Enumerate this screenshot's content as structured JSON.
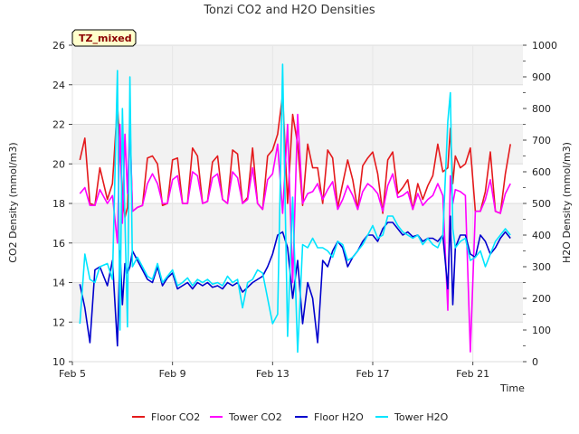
{
  "chart_data": {
    "type": "line",
    "title": "Tonzi CO2 and H2O Densities",
    "tag": "TZ_mixed",
    "xlabel": "Time",
    "ylabel_left": "CO2 Density (mmol/m3)",
    "ylabel_right": "H2O Density (mmol/m3)",
    "xlim": [
      5,
      23
    ],
    "ylim_left": [
      10,
      26
    ],
    "ylim_right": [
      0,
      1000
    ],
    "x_ticks": [
      5,
      9,
      13,
      17,
      21
    ],
    "x_tick_labels": [
      "Feb 5",
      "Feb 9",
      "Feb 13",
      "Feb 17",
      "Feb 21"
    ],
    "y_ticks_left": [
      10,
      12,
      14,
      16,
      18,
      20,
      22,
      24,
      26
    ],
    "y_tick_labels_left": [
      "10",
      "12",
      "14",
      "16",
      "18",
      "20",
      "22",
      "24",
      "26"
    ],
    "y_ticks_right": [
      0,
      100,
      200,
      300,
      400,
      500,
      600,
      700,
      800,
      900,
      1000
    ],
    "y_tick_labels_right": [
      "0",
      "100",
      "200",
      "300",
      "400",
      "500",
      "600",
      "700",
      "800",
      "900",
      "1000"
    ],
    "grid": true,
    "band_shading": true,
    "legend_position": "bottom",
    "series": [
      {
        "name": "Floor CO2",
        "color": "#e41a1c",
        "axis": "left",
        "x": [
          5.3,
          5.5,
          5.7,
          5.9,
          6.1,
          6.4,
          6.6,
          6.8,
          6.9,
          7.0,
          7.1,
          7.2,
          7.3,
          7.4,
          7.6,
          7.8,
          8.0,
          8.2,
          8.4,
          8.6,
          8.8,
          9.0,
          9.2,
          9.4,
          9.6,
          9.8,
          10.0,
          10.2,
          10.4,
          10.6,
          10.8,
          11.0,
          11.2,
          11.4,
          11.6,
          11.8,
          12.0,
          12.2,
          12.4,
          12.6,
          12.8,
          13.0,
          13.2,
          13.4,
          13.6,
          13.8,
          14.0,
          14.2,
          14.4,
          14.6,
          14.8,
          15.0,
          15.2,
          15.4,
          15.6,
          15.8,
          16.0,
          16.2,
          16.4,
          16.6,
          16.8,
          17.0,
          17.2,
          17.4,
          17.6,
          17.8,
          18.0,
          18.2,
          18.4,
          18.6,
          18.8,
          19.0,
          19.2,
          19.4,
          19.6,
          19.8,
          20.0,
          20.1,
          20.2,
          20.3,
          20.5,
          20.7,
          20.9,
          21.1,
          21.3,
          21.5,
          21.7,
          21.9,
          22.1,
          22.3,
          22.5
        ],
        "values": [
          20.2,
          21.3,
          18.0,
          17.9,
          19.8,
          18.2,
          19.0,
          23.0,
          21.0,
          18.5,
          17.3,
          17.8,
          22.0,
          17.6,
          17.8,
          17.9,
          20.3,
          20.4,
          20.0,
          17.9,
          18.0,
          20.2,
          20.3,
          18.0,
          18.0,
          20.8,
          20.4,
          18.0,
          18.1,
          20.1,
          20.4,
          18.2,
          18.0,
          20.7,
          20.5,
          18.0,
          18.3,
          20.8,
          18.0,
          17.7,
          20.4,
          20.7,
          21.5,
          23.5,
          18.0,
          22.5,
          21.0,
          17.9,
          21.0,
          19.8,
          19.8,
          18.0,
          20.7,
          20.3,
          17.8,
          19.0,
          20.2,
          19.2,
          17.7,
          19.9,
          20.3,
          20.6,
          19.5,
          17.5,
          20.2,
          20.6,
          18.5,
          18.8,
          19.2,
          17.7,
          19.0,
          18.2,
          18.9,
          19.4,
          21.0,
          19.6,
          19.8,
          21.8,
          19.0,
          20.4,
          19.8,
          20.0,
          20.8,
          17.6,
          17.6,
          18.6,
          20.6,
          17.6,
          17.5,
          19.5,
          21.0
        ]
      },
      {
        "name": "Tower CO2",
        "color": "#ff00ff",
        "axis": "left",
        "x": [
          5.3,
          5.5,
          5.7,
          5.9,
          6.1,
          6.4,
          6.6,
          6.8,
          6.9,
          7.0,
          7.1,
          7.2,
          7.3,
          7.4,
          7.6,
          7.8,
          8.0,
          8.2,
          8.4,
          8.6,
          8.8,
          9.0,
          9.2,
          9.4,
          9.6,
          9.8,
          10.0,
          10.2,
          10.4,
          10.6,
          10.8,
          11.0,
          11.2,
          11.4,
          11.6,
          11.8,
          12.0,
          12.2,
          12.4,
          12.6,
          12.8,
          13.0,
          13.2,
          13.4,
          13.6,
          13.8,
          14.0,
          14.2,
          14.4,
          14.6,
          14.8,
          15.0,
          15.2,
          15.4,
          15.6,
          15.8,
          16.0,
          16.2,
          16.4,
          16.6,
          16.8,
          17.0,
          17.2,
          17.4,
          17.6,
          17.8,
          18.0,
          18.2,
          18.4,
          18.6,
          18.8,
          19.0,
          19.2,
          19.4,
          19.6,
          19.8,
          20.0,
          20.1,
          20.2,
          20.3,
          20.5,
          20.7,
          20.9,
          21.1,
          21.3,
          21.5,
          21.7,
          21.9,
          22.1,
          22.3,
          22.5
        ],
        "values": [
          18.5,
          18.8,
          17.9,
          17.9,
          18.7,
          18.0,
          18.4,
          16.0,
          22.0,
          17.0,
          21.5,
          18.5,
          22.3,
          17.6,
          17.8,
          17.9,
          19.0,
          19.5,
          19.0,
          18.0,
          18.0,
          19.2,
          19.4,
          18.0,
          18.0,
          19.6,
          19.4,
          18.0,
          18.1,
          19.3,
          19.5,
          18.2,
          18.0,
          19.6,
          19.3,
          18.0,
          18.2,
          19.8,
          18.0,
          17.7,
          19.2,
          19.5,
          21.0,
          17.5,
          22.0,
          14.0,
          22.5,
          18.0,
          18.5,
          18.6,
          19.0,
          18.2,
          18.7,
          19.1,
          17.7,
          18.2,
          18.9,
          18.4,
          17.7,
          18.6,
          19.0,
          18.8,
          18.5,
          17.6,
          18.9,
          19.5,
          18.3,
          18.4,
          18.6,
          17.7,
          18.5,
          17.9,
          18.2,
          18.4,
          19.0,
          18.4,
          12.6,
          19.4,
          18.0,
          18.7,
          18.6,
          18.4,
          10.5,
          17.6,
          17.6,
          18.2,
          19.2,
          17.6,
          17.5,
          18.5,
          19.0
        ]
      },
      {
        "name": "Floor H2O",
        "color": "#0000cd",
        "axis": "right",
        "x": [
          5.3,
          5.5,
          5.7,
          5.9,
          6.1,
          6.4,
          6.6,
          6.8,
          6.9,
          7.0,
          7.1,
          7.2,
          7.3,
          7.4,
          7.6,
          7.8,
          8.0,
          8.2,
          8.4,
          8.6,
          8.8,
          9.0,
          9.2,
          9.4,
          9.6,
          9.8,
          10.0,
          10.2,
          10.4,
          10.6,
          10.8,
          11.0,
          11.2,
          11.4,
          11.6,
          11.8,
          12.0,
          12.2,
          12.4,
          12.6,
          12.8,
          13.0,
          13.2,
          13.4,
          13.6,
          13.8,
          14.0,
          14.2,
          14.4,
          14.6,
          14.8,
          15.0,
          15.2,
          15.4,
          15.6,
          15.8,
          16.0,
          16.2,
          16.4,
          16.6,
          16.8,
          17.0,
          17.2,
          17.4,
          17.6,
          17.8,
          18.0,
          18.2,
          18.4,
          18.6,
          18.8,
          19.0,
          19.2,
          19.4,
          19.6,
          19.8,
          20.0,
          20.1,
          20.2,
          20.3,
          20.5,
          20.7,
          20.9,
          21.1,
          21.3,
          21.5,
          21.7,
          21.9,
          22.1,
          22.3,
          22.5
        ],
        "values": [
          245,
          170,
          60,
          290,
          300,
          240,
          320,
          50,
          350,
          180,
          310,
          280,
          300,
          350,
          320,
          290,
          260,
          250,
          300,
          240,
          265,
          280,
          230,
          240,
          250,
          230,
          250,
          240,
          250,
          235,
          240,
          230,
          250,
          240,
          250,
          220,
          235,
          250,
          260,
          270,
          300,
          340,
          400,
          410,
          360,
          200,
          320,
          120,
          250,
          200,
          60,
          320,
          300,
          350,
          380,
          360,
          300,
          330,
          350,
          380,
          400,
          400,
          380,
          420,
          440,
          440,
          420,
          400,
          410,
          395,
          400,
          380,
          390,
          390,
          380,
          400,
          230,
          460,
          180,
          360,
          400,
          400,
          340,
          330,
          400,
          380,
          340,
          360,
          390,
          410,
          390
        ]
      },
      {
        "name": "Tower H2O",
        "color": "#00e5ff",
        "axis": "right",
        "x": [
          5.3,
          5.5,
          5.7,
          5.9,
          6.1,
          6.4,
          6.6,
          6.8,
          6.9,
          7.0,
          7.1,
          7.2,
          7.3,
          7.4,
          7.6,
          7.8,
          8.0,
          8.2,
          8.4,
          8.6,
          8.8,
          9.0,
          9.2,
          9.4,
          9.6,
          9.8,
          10.0,
          10.2,
          10.4,
          10.6,
          10.8,
          11.0,
          11.2,
          11.4,
          11.6,
          11.8,
          12.0,
          12.2,
          12.4,
          12.6,
          12.8,
          13.0,
          13.2,
          13.4,
          13.6,
          13.8,
          14.0,
          14.2,
          14.4,
          14.6,
          14.8,
          15.0,
          15.2,
          15.4,
          15.6,
          15.8,
          16.0,
          16.2,
          16.4,
          16.6,
          16.8,
          17.0,
          17.2,
          17.4,
          17.6,
          17.8,
          18.0,
          18.2,
          18.4,
          18.6,
          18.8,
          19.0,
          19.2,
          19.4,
          19.6,
          19.8,
          20.0,
          20.1,
          20.2,
          20.3,
          20.5,
          20.7,
          20.9,
          21.1,
          21.3,
          21.5,
          21.7,
          21.9,
          22.1,
          22.3,
          22.5
        ],
        "values": [
          120,
          340,
          260,
          250,
          300,
          310,
          260,
          920,
          100,
          800,
          450,
          110,
          900,
          300,
          330,
          300,
          270,
          260,
          310,
          250,
          270,
          290,
          240,
          250,
          265,
          240,
          260,
          250,
          260,
          245,
          250,
          240,
          270,
          250,
          260,
          170,
          250,
          260,
          290,
          280,
          200,
          120,
          150,
          940,
          80,
          520,
          30,
          370,
          360,
          390,
          360,
          360,
          350,
          330,
          380,
          370,
          320,
          330,
          350,
          370,
          400,
          430,
          390,
          400,
          460,
          460,
          430,
          410,
          400,
          390,
          400,
          370,
          390,
          370,
          360,
          400,
          760,
          850,
          420,
          360,
          380,
          390,
          320,
          330,
          350,
          300,
          340,
          380,
          400,
          420,
          400
        ]
      }
    ]
  }
}
